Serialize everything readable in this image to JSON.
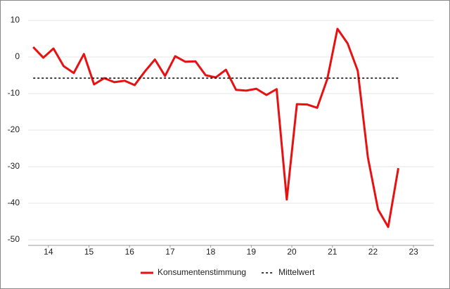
{
  "chart_data": {
    "type": "line",
    "series": [
      {
        "name": "Konsumentenstimmung",
        "color": "#e81010",
        "dash": false,
        "x": [
          14.125,
          14.375,
          14.625,
          14.875,
          15.125,
          15.375,
          15.625,
          15.875,
          16.125,
          16.375,
          16.625,
          16.875,
          17.125,
          17.375,
          17.625,
          17.875,
          18.125,
          18.375,
          18.625,
          18.875,
          19.125,
          19.375,
          19.625,
          19.875,
          20.125,
          20.375,
          20.625,
          20.875,
          21.125,
          21.375,
          21.625,
          21.875,
          22.125,
          22.375,
          22.625,
          22.875,
          23.125
        ],
        "values": [
          2.7,
          -0.2,
          2.3,
          -2.5,
          -4.4,
          0.8,
          -7.5,
          -5.8,
          -6.9,
          -6.5,
          -7.7,
          -4.0,
          -0.7,
          -5.2,
          0.2,
          -1.3,
          -1.2,
          -5.0,
          -5.6,
          -3.5,
          -9.0,
          -9.2,
          -8.7,
          -10.4,
          -8.8,
          -39.0,
          -12.9,
          -13.0,
          -13.9,
          -6.0,
          7.7,
          3.7,
          -3.8,
          -27.5,
          -41.7,
          -46.5,
          -30.4
        ]
      },
      {
        "name": "Mittelwert",
        "color": "#000000",
        "dash": true,
        "x": [
          14.125,
          23.125
        ],
        "values": [
          -5.8,
          -5.8
        ]
      }
    ],
    "xlim": [
      14,
      24
    ],
    "xticks": [
      {
        "value": 14.5,
        "label": "14"
      },
      {
        "value": 15.5,
        "label": "15"
      },
      {
        "value": 16.5,
        "label": "16"
      },
      {
        "value": 17.5,
        "label": "17"
      },
      {
        "value": 18.5,
        "label": "18"
      },
      {
        "value": 19.5,
        "label": "19"
      },
      {
        "value": 20.5,
        "label": "20"
      },
      {
        "value": 21.5,
        "label": "21"
      },
      {
        "value": 22.5,
        "label": "22"
      },
      {
        "value": 23.5,
        "label": "23"
      }
    ],
    "ylim": [
      -50,
      10
    ],
    "yticks": [
      10,
      0,
      -10,
      -20,
      -30,
      -40,
      -50
    ],
    "grid": true,
    "legend": "bottom"
  }
}
